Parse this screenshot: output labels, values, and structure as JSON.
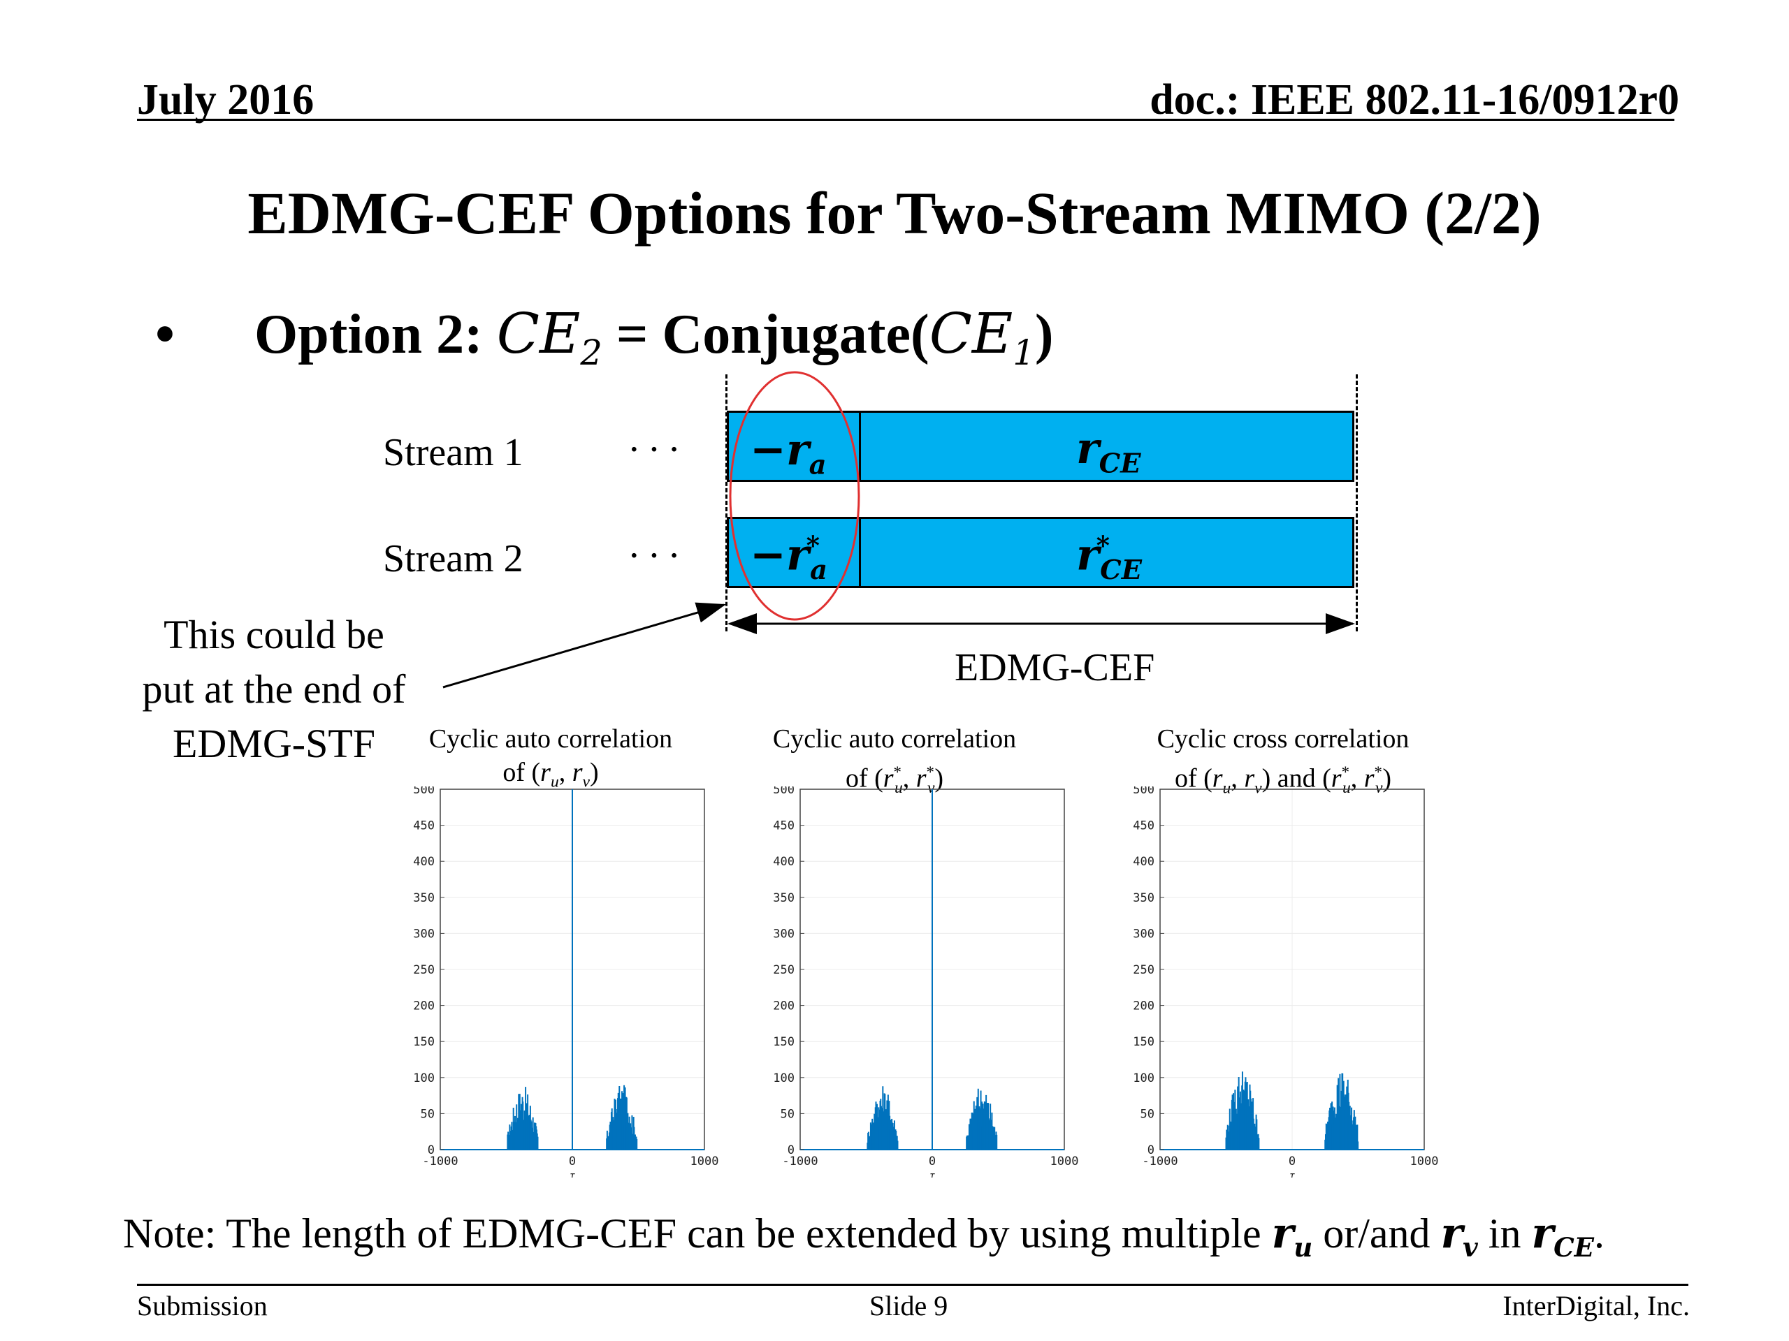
{
  "header": {
    "date": "July 2016",
    "doc": "doc.: IEEE 802.11-16/0912r0"
  },
  "title": "EDMG-CEF Options for Two-Stream MIMO (2/2)",
  "bullet": {
    "marker": "•",
    "prefix": "Option 2: ",
    "lhs": "CE",
    "lhs_sub": "2",
    "eq": " = Conjugate(",
    "arg": "CE",
    "arg_sub": "1",
    "close": ")"
  },
  "diagram": {
    "stream1_label": "Stream 1",
    "stream2_label": "Stream 2",
    "ellipsis": "···",
    "s1_short": {
      "base": "−r",
      "sub": "a",
      "sup": ""
    },
    "s1_long": {
      "base": "r",
      "sub": "CE",
      "sup": ""
    },
    "s2_short": {
      "base": "−r",
      "sub": "a",
      "sup": "*"
    },
    "s2_long": {
      "base": "r",
      "sub": "CE",
      "sup": "*"
    },
    "span_label": "EDMG-CEF",
    "callout_lines": [
      "This could be",
      "put at the end of",
      "EDMG-STF"
    ],
    "block_color": "#00b0f0",
    "circle_color": "#e03030"
  },
  "chart_data": [
    {
      "type": "bar",
      "title": "Cyclic auto correlation",
      "subtitle": "of (r_u, r_v)",
      "xlabel": "τ",
      "xlim": [
        -1000,
        1000
      ],
      "ylim": [
        0,
        500
      ],
      "xticks": [
        -1000,
        0,
        1000
      ],
      "yticks": [
        0,
        50,
        100,
        150,
        200,
        250,
        300,
        350,
        400,
        450,
        500
      ],
      "grid": true,
      "peaks": [
        {
          "x": 0,
          "y": 512
        }
      ],
      "sidelobe_clusters": [
        {
          "x_range": [
            -490,
            -260
          ],
          "max_y": 90
        },
        {
          "x_range": [
            260,
            490
          ],
          "max_y": 92
        }
      ]
    },
    {
      "type": "bar",
      "title": "Cyclic auto correlation",
      "subtitle": "of (r_u*, r_v*)",
      "xlabel": "τ",
      "xlim": [
        -1000,
        1000
      ],
      "ylim": [
        0,
        500
      ],
      "xticks": [
        -1000,
        0,
        1000
      ],
      "yticks": [
        0,
        50,
        100,
        150,
        200,
        250,
        300,
        350,
        400,
        450,
        500
      ],
      "grid": true,
      "peaks": [
        {
          "x": 0,
          "y": 512
        }
      ],
      "sidelobe_clusters": [
        {
          "x_range": [
            -490,
            -260
          ],
          "max_y": 90
        },
        {
          "x_range": [
            260,
            490
          ],
          "max_y": 92
        }
      ]
    },
    {
      "type": "bar",
      "title": "Cyclic cross correlation",
      "subtitle": "of (r_u, r_v) and (r_u*, r_v*)",
      "xlabel": "τ",
      "xlim": [
        -1000,
        1000
      ],
      "ylim": [
        0,
        500
      ],
      "xticks": [
        -1000,
        0,
        1000
      ],
      "yticks": [
        0,
        50,
        100,
        150,
        200,
        250,
        300,
        350,
        400,
        450,
        500
      ],
      "grid": true,
      "peaks": [],
      "sidelobe_clusters": [
        {
          "x_range": [
            -500,
            -250
          ],
          "max_y": 115
        },
        {
          "x_range": [
            250,
            500
          ],
          "max_y": 115
        }
      ]
    }
  ],
  "chart_titles": [
    {
      "line1": "Cyclic auto correlation",
      "line2_pre": "of (",
      "line2_a": "r",
      "line2_a_sub": "u",
      "line2_b": "r",
      "line2_b_sub": "v",
      "star": ""
    },
    {
      "line1": "Cyclic auto correlation",
      "line2_pre": "of (",
      "line2_a": "r",
      "line2_a_sub": "u",
      "line2_b": "r",
      "line2_b_sub": "v",
      "star": "*"
    },
    {
      "line1": "Cyclic cross correlation",
      "line2_pre": "of (",
      "line2_a": "r",
      "line2_a_sub": "u",
      "line2_b": "r",
      "line2_b_sub": "v",
      "star": ""
    }
  ],
  "note": {
    "pre": "Note: The length of EDMG-CEF can be extended by using multiple ",
    "ru": "r",
    "ru_sub": "u",
    "mid": " or/and ",
    "rv": "r",
    "rv_sub": "v",
    "in": " in ",
    "rce": "r",
    "rce_sub": "CE",
    "end": "."
  },
  "footer": {
    "left": "Submission",
    "center": "Slide 9",
    "right": "InterDigital, Inc."
  },
  "series_color": "#0072bd"
}
